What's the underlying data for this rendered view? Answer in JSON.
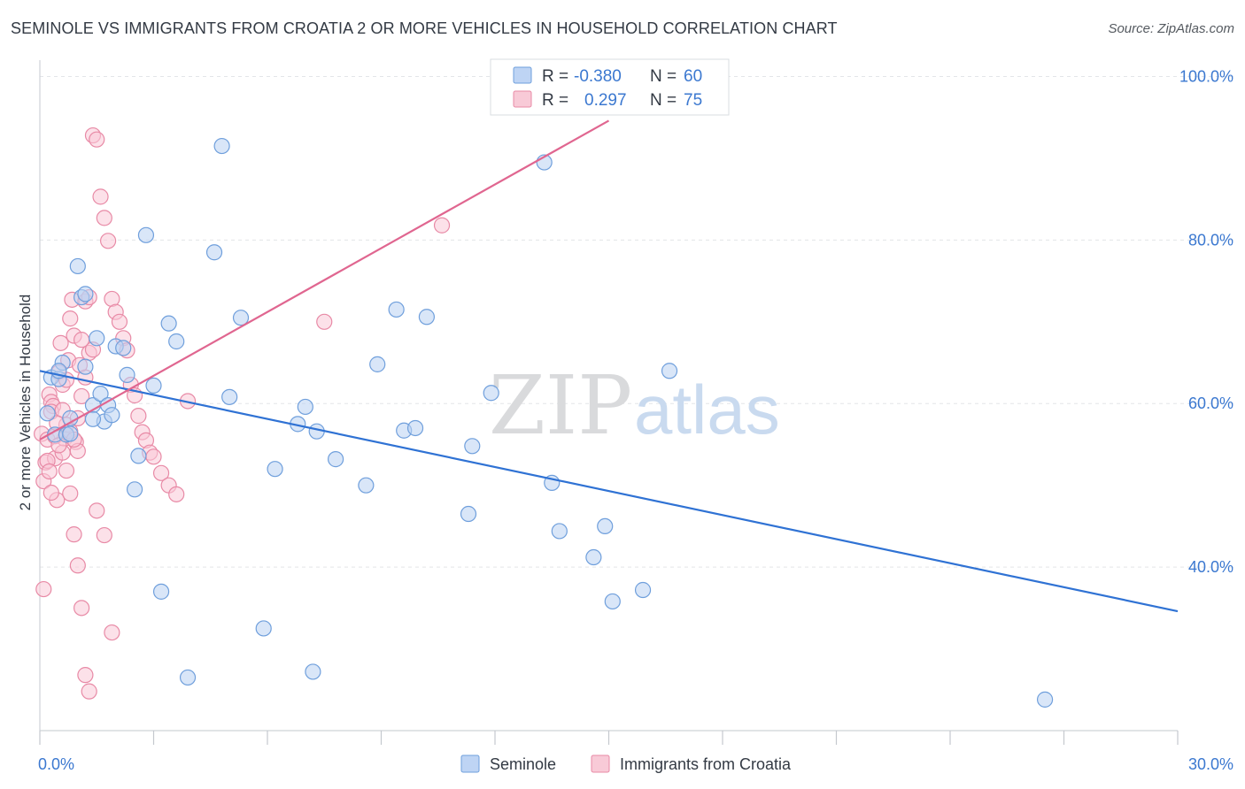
{
  "title": "SEMINOLE VS IMMIGRANTS FROM CROATIA 2 OR MORE VEHICLES IN HOUSEHOLD CORRELATION CHART",
  "source": "Source: ZipAtlas.com",
  "watermark": {
    "zip": "ZIP",
    "atlas": "atlas"
  },
  "legend_top": {
    "r_label": "R =",
    "n_label": "N =",
    "rows": [
      {
        "r": "-0.380",
        "n": "60",
        "color": "#a8c6f0"
      },
      {
        "r": "0.297",
        "n": "75",
        "color": "#f5b8ca"
      }
    ]
  },
  "legend_bottom": [
    {
      "label": "Seminole",
      "color": "#a8c6f0"
    },
    {
      "label": "Immigrants from Croatia",
      "color": "#f5b8ca"
    }
  ],
  "chart_data": {
    "type": "scatter",
    "title": "SEMINOLE VS IMMIGRANTS FROM CROATIA 2 OR MORE VEHICLES IN HOUSEHOLD CORRELATION CHART",
    "xlabel": "",
    "ylabel": "2 or more Vehicles in Household",
    "xlim": [
      0,
      30
    ],
    "ylim": [
      20,
      102
    ],
    "x_tick_labels": [
      "0.0%",
      "30.0%"
    ],
    "y_ticks": [
      40,
      60,
      80,
      100
    ],
    "y_tick_labels": [
      "40.0%",
      "60.0%",
      "80.0%",
      "100.0%"
    ],
    "grid": true,
    "series": [
      {
        "name": "Seminole",
        "color": "#6f9fdc",
        "fill": "#b9d1f3",
        "line_color": "#2f72d4",
        "trend": {
          "x": [
            0,
            30
          ],
          "y": [
            64.0,
            34.6
          ]
        },
        "points": [
          [
            0.2,
            58.8
          ],
          [
            0.3,
            63.2
          ],
          [
            0.4,
            56.2
          ],
          [
            0.5,
            63.0
          ],
          [
            0.6,
            65.0
          ],
          [
            0.7,
            56.2
          ],
          [
            0.8,
            58.2
          ],
          [
            1.0,
            76.8
          ],
          [
            1.1,
            73.0
          ],
          [
            1.2,
            64.5
          ],
          [
            1.4,
            59.8
          ],
          [
            1.5,
            68.0
          ],
          [
            1.6,
            61.2
          ],
          [
            1.7,
            57.8
          ],
          [
            1.8,
            59.8
          ],
          [
            1.9,
            58.6
          ],
          [
            2.0,
            67.0
          ],
          [
            2.2,
            66.8
          ],
          [
            2.3,
            63.5
          ],
          [
            2.5,
            49.5
          ],
          [
            2.6,
            53.6
          ],
          [
            2.8,
            80.6
          ],
          [
            3.0,
            62.2
          ],
          [
            3.2,
            37.0
          ],
          [
            3.4,
            69.8
          ],
          [
            3.6,
            67.6
          ],
          [
            3.9,
            26.5
          ],
          [
            4.6,
            78.5
          ],
          [
            4.8,
            91.5
          ],
          [
            5.0,
            60.8
          ],
          [
            5.3,
            70.5
          ],
          [
            5.9,
            32.5
          ],
          [
            6.2,
            52.0
          ],
          [
            6.8,
            57.5
          ],
          [
            7.0,
            59.6
          ],
          [
            7.2,
            27.2
          ],
          [
            7.3,
            56.6
          ],
          [
            7.8,
            53.2
          ],
          [
            8.6,
            50.0
          ],
          [
            8.9,
            64.8
          ],
          [
            9.4,
            71.5
          ],
          [
            9.6,
            56.7
          ],
          [
            9.9,
            57.0
          ],
          [
            10.2,
            70.6
          ],
          [
            11.3,
            46.5
          ],
          [
            11.4,
            54.8
          ],
          [
            11.9,
            61.3
          ],
          [
            13.3,
            89.5
          ],
          [
            13.5,
            50.3
          ],
          [
            13.7,
            44.4
          ],
          [
            14.6,
            41.2
          ],
          [
            14.9,
            45.0
          ],
          [
            15.1,
            35.8
          ],
          [
            15.9,
            37.2
          ],
          [
            16.6,
            64.0
          ],
          [
            1.2,
            73.4
          ],
          [
            0.5,
            64.0
          ],
          [
            26.5,
            23.8
          ],
          [
            0.8,
            56.3
          ],
          [
            1.4,
            58.1
          ]
        ]
      },
      {
        "name": "Immigrants from Croatia",
        "color": "#e88aa6",
        "fill": "#f9c9d7",
        "line_color": "#e06690",
        "trend": {
          "x": [
            0,
            15.0
          ],
          "y": [
            55.6,
            94.6
          ]
        },
        "points": [
          [
            0.05,
            56.3
          ],
          [
            0.1,
            50.5
          ],
          [
            0.15,
            52.8
          ],
          [
            0.2,
            55.6
          ],
          [
            0.25,
            61.1
          ],
          [
            0.3,
            60.2
          ],
          [
            0.35,
            59.7
          ],
          [
            0.4,
            53.3
          ],
          [
            0.45,
            48.2
          ],
          [
            0.5,
            63.8
          ],
          [
            0.55,
            67.4
          ],
          [
            0.6,
            62.3
          ],
          [
            0.65,
            55.7
          ],
          [
            0.7,
            57.4
          ],
          [
            0.75,
            65.3
          ],
          [
            0.8,
            70.4
          ],
          [
            0.85,
            72.7
          ],
          [
            0.9,
            68.3
          ],
          [
            0.95,
            55.3
          ],
          [
            1.0,
            54.2
          ],
          [
            1.05,
            64.7
          ],
          [
            1.1,
            67.8
          ],
          [
            1.2,
            72.5
          ],
          [
            1.3,
            73.0
          ],
          [
            1.4,
            92.8
          ],
          [
            1.5,
            92.3
          ],
          [
            1.6,
            85.3
          ],
          [
            1.7,
            82.7
          ],
          [
            1.8,
            79.9
          ],
          [
            1.9,
            72.8
          ],
          [
            2.0,
            71.2
          ],
          [
            2.1,
            70.0
          ],
          [
            2.2,
            68.0
          ],
          [
            2.3,
            66.5
          ],
          [
            2.4,
            62.3
          ],
          [
            2.5,
            61.0
          ],
          [
            2.6,
            58.5
          ],
          [
            2.7,
            56.5
          ],
          [
            2.8,
            55.5
          ],
          [
            2.9,
            54.0
          ],
          [
            3.0,
            53.5
          ],
          [
            3.2,
            51.5
          ],
          [
            3.4,
            50.0
          ],
          [
            3.6,
            48.9
          ],
          [
            3.9,
            60.3
          ],
          [
            7.5,
            70.0
          ],
          [
            10.6,
            81.8
          ],
          [
            0.3,
            59.0
          ],
          [
            0.4,
            56.0
          ],
          [
            0.6,
            54.0
          ],
          [
            0.7,
            51.8
          ],
          [
            0.8,
            49.0
          ],
          [
            0.9,
            44.0
          ],
          [
            1.0,
            40.2
          ],
          [
            1.1,
            35.0
          ],
          [
            1.2,
            26.8
          ],
          [
            1.3,
            24.8
          ],
          [
            1.5,
            46.9
          ],
          [
            1.7,
            43.9
          ],
          [
            1.9,
            32.0
          ],
          [
            0.1,
            37.3
          ],
          [
            0.2,
            53.0
          ],
          [
            0.3,
            49.1
          ],
          [
            0.5,
            54.9
          ],
          [
            0.6,
            59.2
          ],
          [
            0.7,
            62.9
          ],
          [
            0.8,
            56.6
          ],
          [
            0.9,
            55.6
          ],
          [
            1.0,
            58.2
          ],
          [
            1.1,
            60.9
          ],
          [
            1.2,
            63.2
          ],
          [
            1.3,
            66.2
          ],
          [
            1.4,
            66.6
          ],
          [
            0.25,
            51.7
          ],
          [
            0.45,
            57.6
          ]
        ]
      }
    ]
  }
}
